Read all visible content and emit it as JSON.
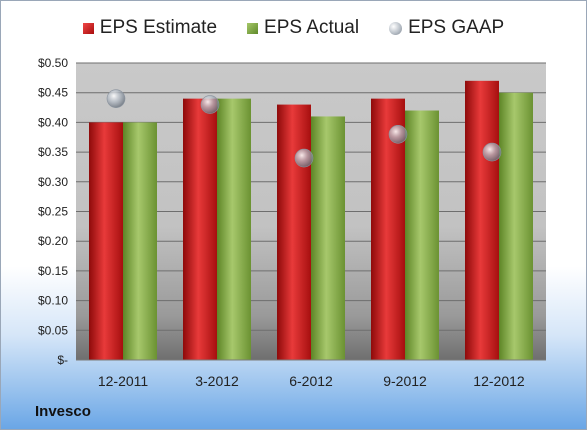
{
  "company_label": "Invesco",
  "legend": {
    "estimate": "EPS Estimate",
    "actual": "EPS Actual",
    "gaap": "EPS GAAP"
  },
  "colors": {
    "estimate": "#d01c1c",
    "actual": "#8db04a",
    "gaap": "#a8b0ba"
  },
  "chart_data": {
    "type": "bar",
    "categories": [
      "12-2011",
      "3-2012",
      "6-2012",
      "9-2012",
      "12-2012"
    ],
    "series": [
      {
        "name": "EPS Estimate",
        "values": [
          0.4,
          0.44,
          0.43,
          0.44,
          0.47
        ]
      },
      {
        "name": "EPS Actual",
        "values": [
          0.4,
          0.44,
          0.41,
          0.42,
          0.45
        ]
      },
      {
        "name": "EPS GAAP",
        "values": [
          0.44,
          0.43,
          0.34,
          0.38,
          0.35
        ],
        "marker": "circle"
      }
    ],
    "yticks": [
      "$-",
      "$0.05",
      "$0.10",
      "$0.15",
      "$0.20",
      "$0.25",
      "$0.30",
      "$0.35",
      "$0.40",
      "$0.45",
      "$0.50"
    ],
    "ylim": [
      0,
      0.5
    ],
    "grid": true,
    "legend_position": "top"
  }
}
